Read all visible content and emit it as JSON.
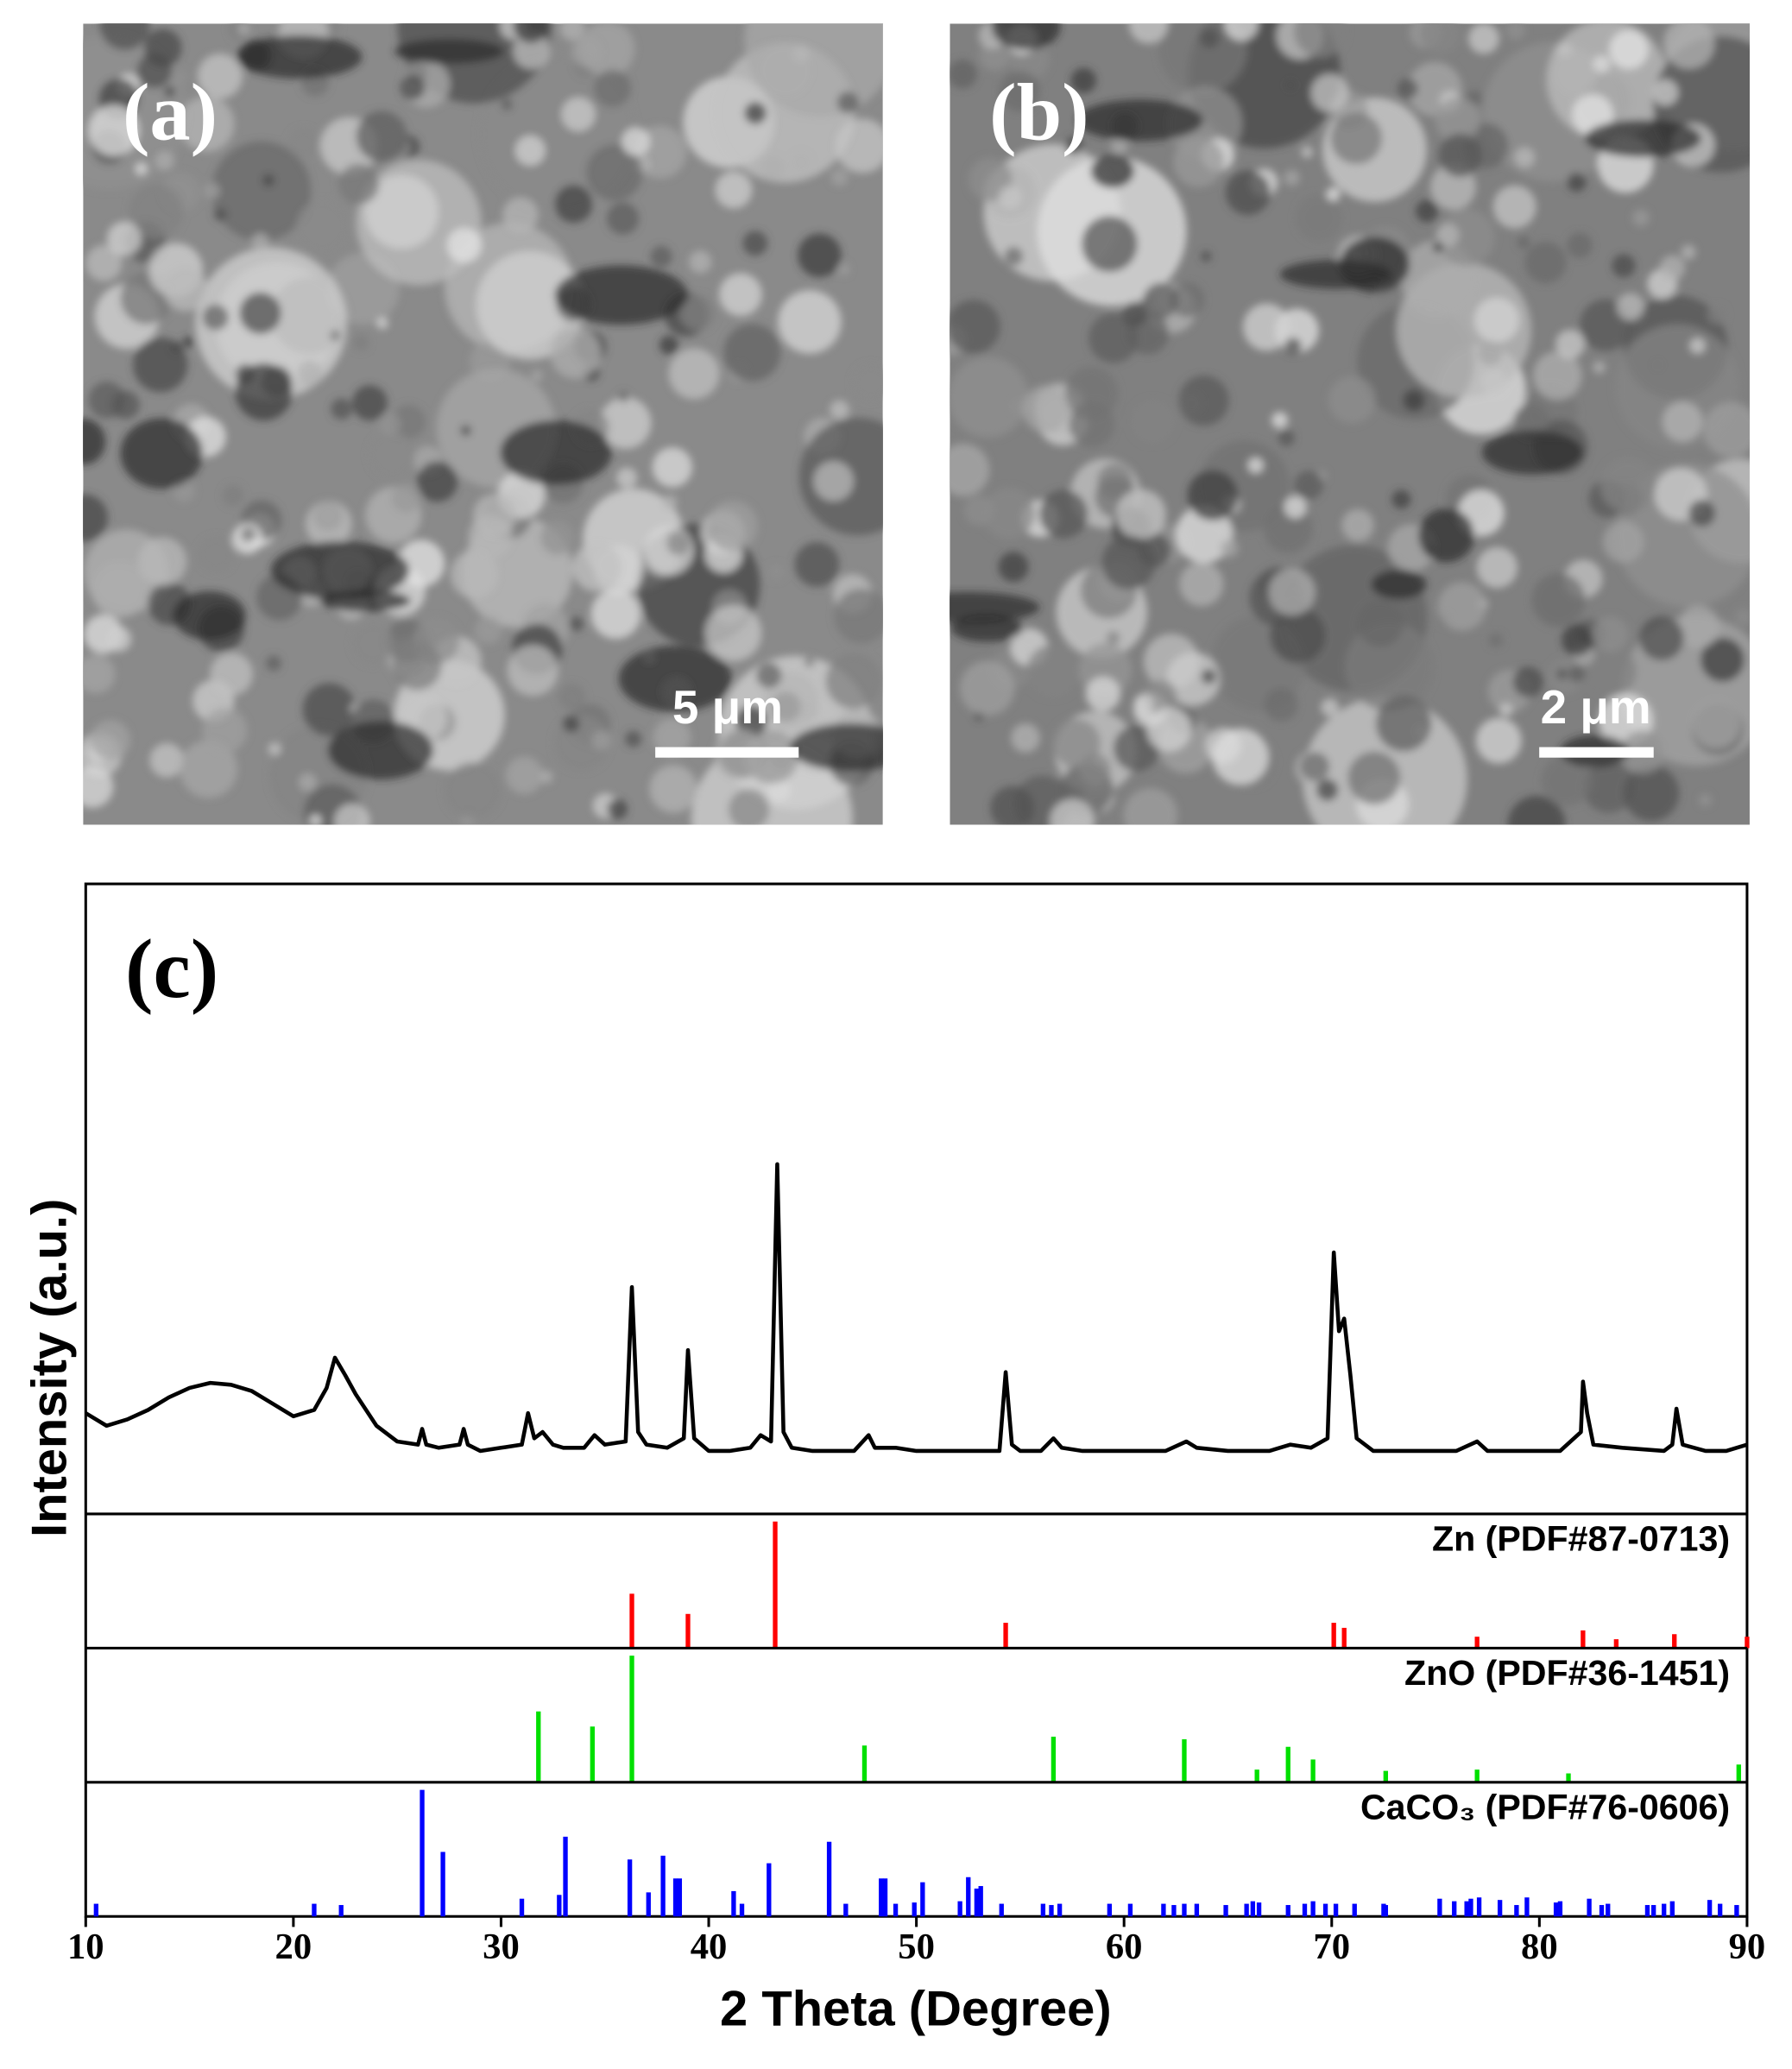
{
  "images": [
    {
      "label": "(a)",
      "scale_bar": "5 μm"
    },
    {
      "label": "(b)",
      "scale_bar": "2 μm"
    }
  ],
  "chart_data": {
    "type": "xrd",
    "panel_label": "(c)",
    "x_label": "2 Theta (Degree)",
    "y_label": "Intensity (a.u.)",
    "xlim": [
      10,
      90
    ],
    "xticks": [
      10,
      20,
      30,
      40,
      50,
      60,
      70,
      80,
      90
    ],
    "ylim": [
      0,
      100
    ],
    "color": "#000000",
    "x": [
      10,
      11,
      12,
      13,
      14,
      15,
      16,
      17,
      18,
      19,
      20,
      21,
      21.6,
      22,
      22.5,
      23,
      24,
      25,
      26,
      26.2,
      26.4,
      27,
      28,
      28.2,
      28.4,
      29,
      30,
      31,
      31.3,
      31.6,
      32,
      32.5,
      33,
      34,
      34.5,
      35,
      36,
      36.3,
      36.6,
      37,
      38,
      38.8,
      39,
      39.3,
      40,
      41,
      42,
      42.5,
      43,
      43.3,
      43.6,
      44,
      45,
      46,
      47,
      47.7,
      48,
      49,
      50,
      51,
      52,
      53,
      54,
      54.3,
      54.6,
      55,
      56,
      56.6,
      57,
      58,
      60,
      62,
      63,
      63.5,
      65,
      67,
      68,
      69,
      69.8,
      70.1,
      70.35,
      70.6,
      70.9,
      71.2,
      72,
      74,
      76,
      77,
      77.5,
      79,
      81,
      82,
      82.1,
      82.3,
      82.6,
      84,
      86,
      86.4,
      86.6,
      86.9,
      88,
      89,
      90
    ],
    "values": [
      16,
      14,
      15,
      16.5,
      18.5,
      20,
      20.8,
      20.5,
      19.5,
      17.5,
      15.5,
      16.5,
      20,
      24.8,
      22,
      19,
      14,
      11.5,
      11,
      13.5,
      11,
      10.5,
      11,
      13.5,
      11,
      10,
      10.5,
      11,
      16,
      12,
      13,
      11,
      10.5,
      10.5,
      12.5,
      11,
      11.5,
      36,
      13,
      11,
      10.5,
      12,
      26,
      12,
      10,
      10,
      10.5,
      12.5,
      11.5,
      55.5,
      13,
      10.5,
      10,
      10,
      10,
      12.5,
      10.5,
      10.5,
      10,
      10,
      10,
      10,
      10,
      22.5,
      11,
      10,
      10,
      12,
      10.5,
      10,
      10,
      10,
      11.5,
      10.5,
      10,
      10,
      11,
      10.5,
      12,
      41.5,
      29,
      31,
      22,
      12,
      10,
      10,
      10,
      11.5,
      10,
      10,
      10,
      13,
      21,
      16,
      11,
      10.5,
      10,
      11,
      16.7,
      11,
      10,
      10,
      11
    ],
    "references": [
      {
        "name": "Zn (PDF#87-0713)",
        "color": "#ff0000",
        "ylim": [
          0,
          106
        ],
        "x": [
          36.3,
          39,
          43.2,
          54.3,
          70.1,
          70.6,
          77,
          82.1,
          83.7,
          86.5,
          90
        ],
        "values": [
          43,
          27,
          100,
          20,
          20,
          16,
          9,
          14,
          7,
          11,
          9
        ]
      },
      {
        "name": "ZnO (PDF#36-1451)",
        "color": "#00e000",
        "ylim": [
          0,
          106
        ],
        "x": [
          31.8,
          34.4,
          36.3,
          47.5,
          56.6,
          62.9,
          66.4,
          67.9,
          69.1,
          72.6,
          77,
          81.4,
          89.6
        ],
        "values": [
          56,
          44,
          100,
          29,
          36,
          34,
          10,
          28,
          18,
          9,
          10,
          7,
          14
        ]
      },
      {
        "name": "CaCO₃ (PDF#76-0606)",
        "color": "#0000ff",
        "ylim": [
          0,
          106
        ],
        "x": [
          10.5,
          21,
          22.3,
          26.2,
          27.2,
          31,
          32.8,
          33.1,
          36.2,
          37.1,
          37.8,
          38.4,
          38.6,
          41.2,
          41.6,
          42.9,
          45.8,
          46.6,
          48.3,
          48.5,
          49,
          49.9,
          50.3,
          52.1,
          52.5,
          52.9,
          53.1,
          54.1,
          56.1,
          56.5,
          56.9,
          59.3,
          60.3,
          61.9,
          62.4,
          62.9,
          63.5,
          64.9,
          65.9,
          66.2,
          66.5,
          67.9,
          68.7,
          69.1,
          69.7,
          70.2,
          71.1,
          72.5,
          72.6,
          75.2,
          75.9,
          76.5,
          76.7,
          77.1,
          78.1,
          78.9,
          79.4,
          80.8,
          81,
          82.4,
          83,
          83.3,
          85.2,
          85.5,
          86,
          86.4,
          88.2,
          88.7,
          89.5
        ],
        "values": [
          10,
          10,
          9,
          100,
          51,
          14,
          17,
          63,
          45,
          19,
          48,
          30,
          30,
          20,
          10,
          42,
          59,
          10,
          30,
          30,
          10,
          11,
          27,
          12,
          31,
          22,
          24,
          10,
          10,
          9,
          10,
          10,
          10,
          10,
          9,
          10,
          10,
          9,
          10,
          12,
          11,
          9,
          10,
          12,
          10,
          10,
          10,
          10,
          9,
          14,
          12,
          12,
          14,
          15,
          13,
          9,
          15,
          11,
          12,
          14,
          9,
          10,
          9,
          9,
          10,
          12,
          13,
          10,
          9
        ]
      }
    ]
  }
}
